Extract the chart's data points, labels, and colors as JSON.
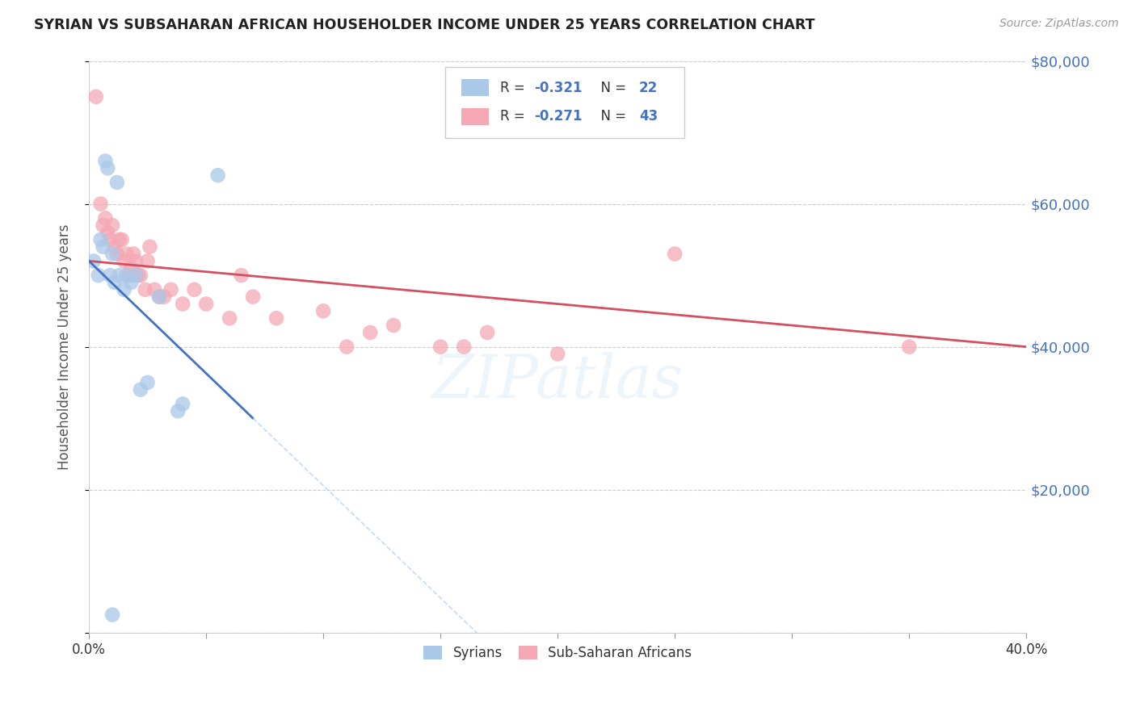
{
  "title": "SYRIAN VS SUBSAHARAN AFRICAN HOUSEHOLDER INCOME UNDER 25 YEARS CORRELATION CHART",
  "source": "Source: ZipAtlas.com",
  "ylabel": "Householder Income Under 25 years",
  "xlim": [
    0.0,
    0.4
  ],
  "ylim": [
    0,
    80000
  ],
  "xticks": [
    0.0,
    0.05,
    0.1,
    0.15,
    0.2,
    0.25,
    0.3,
    0.35,
    0.4
  ],
  "xticklabels": [
    "0.0%",
    "",
    "",
    "",
    "",
    "",
    "",
    "",
    "40.0%"
  ],
  "yticks": [
    0,
    20000,
    40000,
    60000,
    80000
  ],
  "yticklabels": [
    "",
    "$20,000",
    "$40,000",
    "$60,000",
    "$80,000"
  ],
  "background_color": "#ffffff",
  "grid_color": "#cccccc",
  "syrian_color": "#aac8e8",
  "subsaharan_color": "#f4a8b4",
  "syrian_line_color": "#4472c4",
  "subsaharan_line_color": "#d45060",
  "watermark": "ZIPatlas",
  "syrians_x": [
    0.002,
    0.004,
    0.005,
    0.006,
    0.007,
    0.008,
    0.009,
    0.01,
    0.011,
    0.012,
    0.013,
    0.015,
    0.016,
    0.018,
    0.02,
    0.022,
    0.025,
    0.03,
    0.038,
    0.04,
    0.055,
    0.01
  ],
  "syrians_y": [
    52000,
    50000,
    55000,
    54000,
    66000,
    65000,
    50000,
    53000,
    49000,
    63000,
    50000,
    48000,
    50000,
    49000,
    50000,
    34000,
    35000,
    47000,
    31000,
    32000,
    64000,
    2500
  ],
  "subsaharan_x": [
    0.003,
    0.005,
    0.006,
    0.007,
    0.008,
    0.009,
    0.01,
    0.011,
    0.012,
    0.013,
    0.014,
    0.015,
    0.016,
    0.017,
    0.018,
    0.019,
    0.02,
    0.021,
    0.022,
    0.024,
    0.025,
    0.026,
    0.028,
    0.03,
    0.032,
    0.035,
    0.04,
    0.045,
    0.05,
    0.06,
    0.065,
    0.07,
    0.08,
    0.1,
    0.11,
    0.12,
    0.13,
    0.15,
    0.16,
    0.17,
    0.2,
    0.25,
    0.35
  ],
  "subsaharan_y": [
    75000,
    60000,
    57000,
    58000,
    56000,
    55000,
    57000,
    54000,
    53000,
    55000,
    55000,
    52000,
    53000,
    50000,
    51000,
    53000,
    52000,
    50000,
    50000,
    48000,
    52000,
    54000,
    48000,
    47000,
    47000,
    48000,
    46000,
    48000,
    46000,
    44000,
    50000,
    47000,
    44000,
    45000,
    40000,
    42000,
    43000,
    40000,
    40000,
    42000,
    39000,
    53000,
    40000
  ],
  "syrian_line_x0": 0.0,
  "syrian_line_y0": 52000,
  "syrian_line_x1": 0.07,
  "syrian_line_y1": 30000,
  "syrian_line_x_dash_end": 0.4,
  "subsaharan_line_x0": 0.0,
  "subsaharan_line_y0": 52000,
  "subsaharan_line_x1": 0.4,
  "subsaharan_line_y1": 40000
}
